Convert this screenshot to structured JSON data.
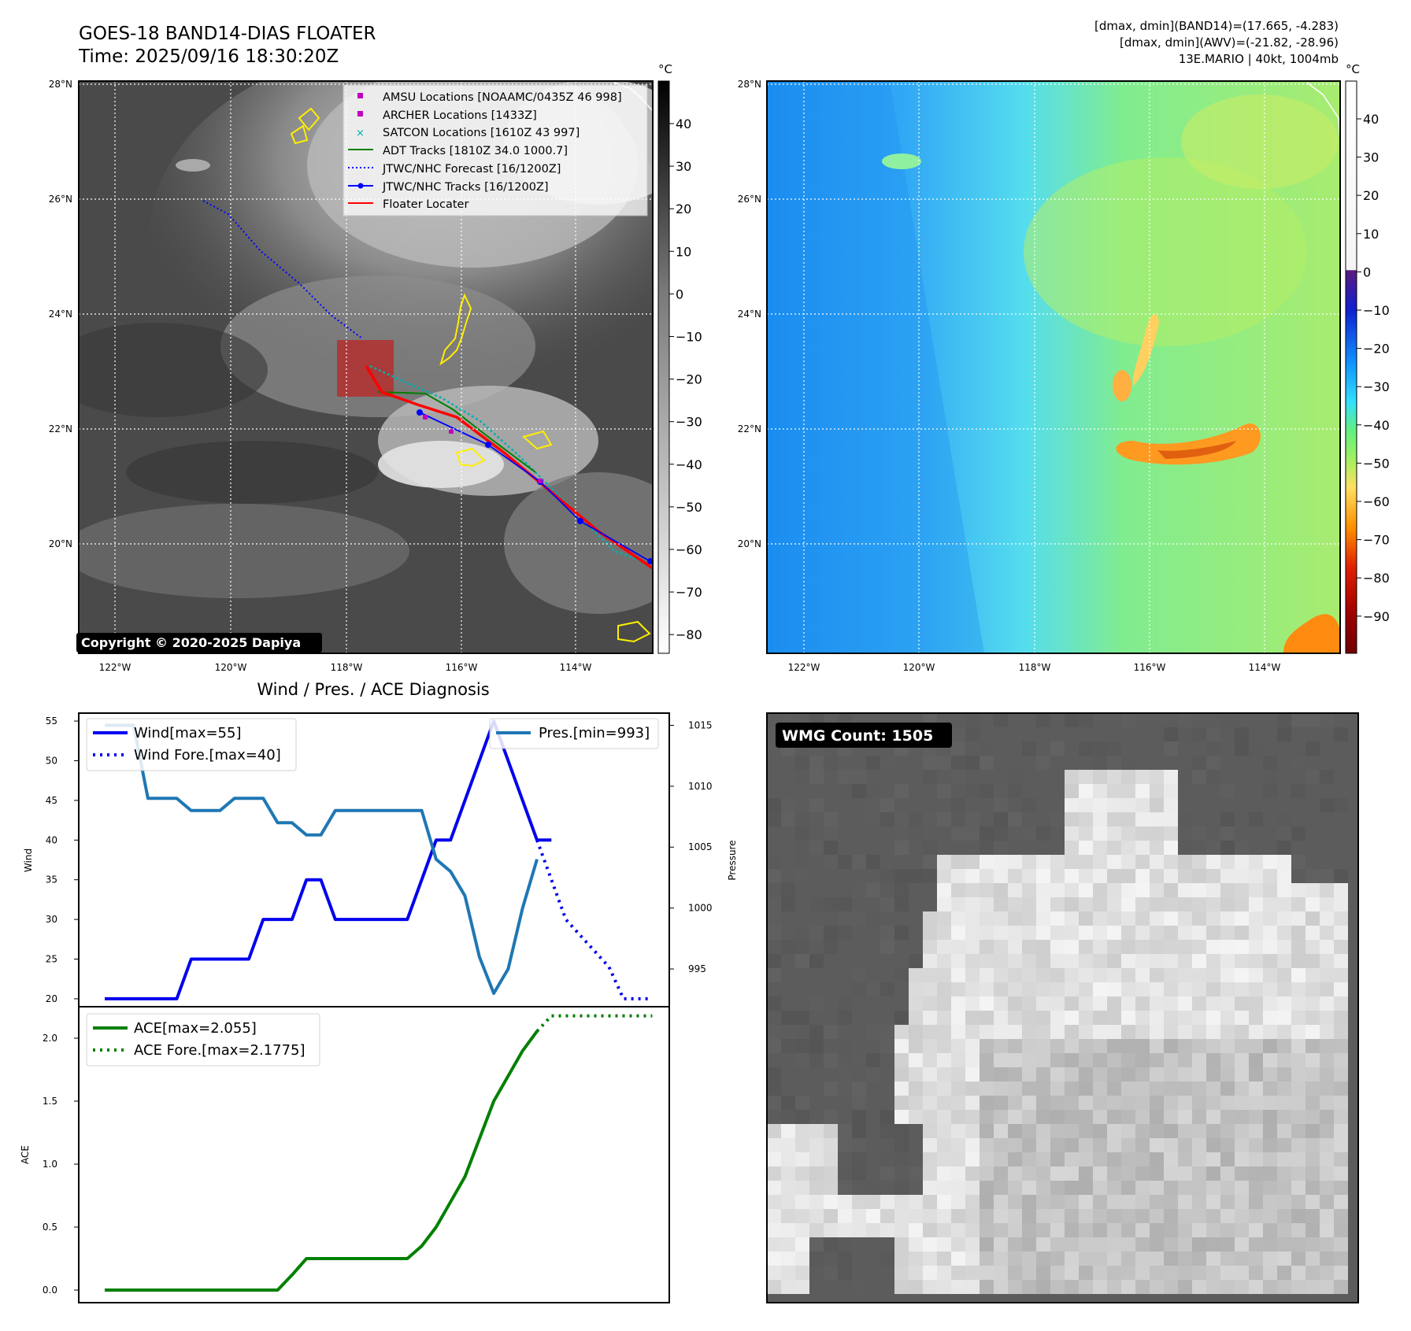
{
  "header": {
    "title": "GOES-18 BAND14-DIAS FLOATER",
    "time": "Time: 2025/09/16 18:30:20Z",
    "info_line1": "[dmax, dmin](BAND14)=(17.665, -4.283)",
    "info_line2": "[dmax, dmin](AWV)=(-21.82, -28.96)",
    "info_line3": "13E.MARIO | 40kt, 1004mb"
  },
  "map_axes": {
    "lat_labels": [
      "28°N",
      "26°N",
      "24°N",
      "22°N",
      "20°N"
    ],
    "lon_labels": [
      "122°W",
      "120°W",
      "118°W",
      "116°W",
      "114°W"
    ]
  },
  "colorbar_ir": {
    "unit": "°C",
    "ticks": [
      "40",
      "30",
      "20",
      "10",
      "0",
      "−10",
      "−20",
      "−30",
      "−40",
      "−50",
      "−60",
      "−70",
      "−80"
    ]
  },
  "colorbar_wv": {
    "unit": "°C",
    "ticks": [
      "40",
      "30",
      "20",
      "10",
      "0",
      "−10",
      "−20",
      "−30",
      "−40",
      "−50",
      "−60",
      "−70",
      "−80",
      "−90"
    ]
  },
  "legend_ir": [
    {
      "label": "AMSU Locations [NOAAMC/0435Z 46 998]",
      "marker": "square",
      "color": "#c000c0"
    },
    {
      "label": "ARCHER Locations [1433Z]",
      "marker": "square",
      "color": "#c000c0"
    },
    {
      "label": "SATCON Locations [1610Z 43 997]",
      "marker": "x",
      "color": "#00b0b0"
    },
    {
      "label": "ADT Tracks [1810Z 34.0 1000.7]",
      "marker": "line",
      "color": "#008000"
    },
    {
      "label": "JTWC/NHC Forecast [16/1200Z]",
      "marker": "dotted",
      "color": "#0000ff"
    },
    {
      "label": "JTWC/NHC Tracks [16/1200Z]",
      "marker": "line-dot",
      "color": "#0000ff"
    },
    {
      "label": "Floater Locater",
      "marker": "line",
      "color": "#ff0000"
    }
  ],
  "copyright": "Copyright © 2020-2025 Dapiya",
  "diag_title": "Wind / Pres. / ACE Diagnosis",
  "wmg_label": "WMG Count: 1505",
  "colors": {
    "wind": "#0000ee",
    "pressure": "#1f77b4",
    "ace": "#008000",
    "floater": "#ff0000",
    "coast": "#ffee00"
  },
  "chart_data": [
    {
      "type": "line",
      "name": "wind-pressure",
      "ylabel": "Wind",
      "y2label": "Pressure",
      "ylim": [
        19,
        56
      ],
      "y2lim": [
        991.9,
        1016
      ],
      "yticks": [
        20,
        25,
        30,
        35,
        40,
        45,
        50,
        55
      ],
      "y2ticks": [
        995,
        1000,
        1005,
        1010,
        1015
      ],
      "legend_left": [
        "Wind[max=55]",
        "Wind Fore.[max=40]"
      ],
      "legend_right": [
        "Pres.[min=993]"
      ],
      "series": [
        {
          "name": "Wind[max=55]",
          "axis": "left",
          "style": "solid",
          "x": [
            0,
            1,
            2,
            3,
            4,
            5,
            6,
            7,
            8,
            9,
            10,
            11,
            12,
            13,
            14,
            15,
            16,
            17,
            18,
            19,
            20,
            21,
            22,
            23,
            24,
            25,
            26,
            27,
            28,
            29,
            30,
            31
          ],
          "values": [
            20,
            20,
            20,
            20,
            20,
            20,
            25,
            25,
            25,
            25,
            25,
            30,
            30,
            30,
            35,
            35,
            30,
            30,
            30,
            30,
            30,
            30,
            35,
            40,
            40,
            45,
            50,
            55,
            50,
            45,
            40,
            40
          ]
        },
        {
          "name": "Wind Fore.[max=40]",
          "axis": "left",
          "style": "dotted",
          "x": [
            30,
            31,
            32,
            33,
            34,
            35,
            36,
            37,
            38
          ],
          "values": [
            40,
            35,
            30,
            28,
            26,
            24,
            20,
            20,
            20
          ]
        },
        {
          "name": "Pres.[min=993]",
          "axis": "right",
          "style": "solid",
          "x": [
            0,
            1,
            2,
            3,
            4,
            5,
            6,
            7,
            8,
            9,
            10,
            11,
            12,
            13,
            14,
            15,
            16,
            17,
            18,
            19,
            20,
            21,
            22,
            23,
            24,
            25,
            26,
            27,
            28,
            29,
            30
          ],
          "values": [
            1015,
            1015,
            1015,
            1009,
            1009,
            1009,
            1008,
            1008,
            1008,
            1009,
            1009,
            1009,
            1007,
            1007,
            1006,
            1006,
            1008,
            1008,
            1008,
            1008,
            1008,
            1008,
            1008,
            1004,
            1003,
            1001,
            996,
            993,
            995,
            1000,
            1004
          ]
        }
      ]
    },
    {
      "type": "line",
      "name": "ace",
      "ylabel": "ACE",
      "ylim": [
        -0.1,
        2.25
      ],
      "yticks": [
        "0.0",
        "0.5",
        "1.0",
        "1.5",
        "2.0"
      ],
      "legend": [
        "ACE[max=2.055]",
        "ACE Fore.[max=2.1775]"
      ],
      "series": [
        {
          "name": "ACE[max=2.055]",
          "style": "solid",
          "x": [
            0,
            1,
            2,
            3,
            4,
            5,
            6,
            7,
            8,
            9,
            10,
            11,
            12,
            13,
            14,
            15,
            16,
            17,
            18,
            19,
            20,
            21,
            22,
            23,
            24,
            25,
            26,
            27,
            28,
            29,
            30
          ],
          "values": [
            0,
            0,
            0,
            0,
            0,
            0,
            0,
            0,
            0,
            0,
            0,
            0,
            0,
            0.12,
            0.25,
            0.25,
            0.25,
            0.25,
            0.25,
            0.25,
            0.25,
            0.25,
            0.35,
            0.5,
            0.7,
            0.9,
            1.2,
            1.5,
            1.7,
            1.9,
            2.055
          ]
        },
        {
          "name": "ACE Fore.[max=2.1775]",
          "style": "dotted",
          "x": [
            30,
            31,
            32,
            33,
            34,
            35,
            36,
            37,
            38
          ],
          "values": [
            2.055,
            2.1775,
            2.1775,
            2.1775,
            2.1775,
            2.1775,
            2.1775,
            2.1775,
            2.1775
          ]
        }
      ]
    }
  ]
}
